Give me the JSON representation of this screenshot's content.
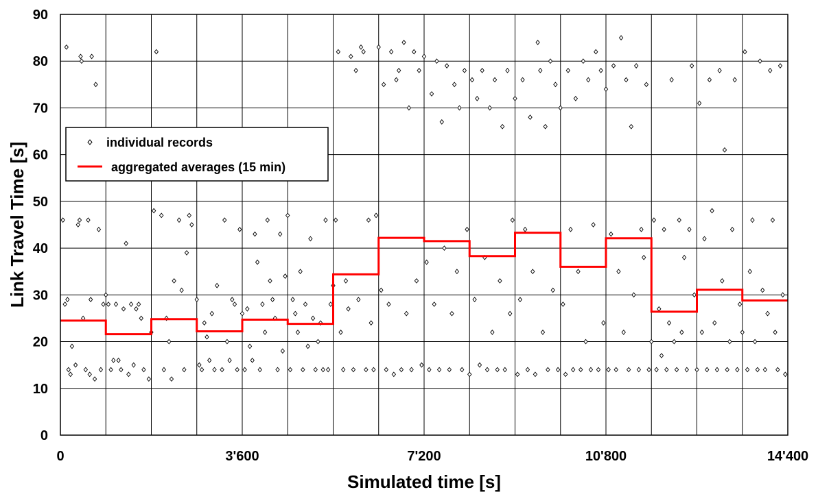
{
  "chart_data": {
    "type": "scatter",
    "xlabel": "Simulated time [s]",
    "ylabel": "Link Travel Time [s]",
    "xlim": [
      0,
      14400
    ],
    "ylim": [
      0,
      90
    ],
    "x_ticks": [
      0,
      3600,
      7200,
      10800,
      14400
    ],
    "x_tick_labels": [
      "0",
      "3'600",
      "7'200",
      "10'800",
      "14'400"
    ],
    "y_ticks": [
      0,
      10,
      20,
      30,
      40,
      50,
      60,
      70,
      80,
      90
    ],
    "y_tick_labels": [
      "0",
      "10",
      "20",
      "30",
      "40",
      "50",
      "60",
      "70",
      "80",
      "90"
    ],
    "x_gridlines": [
      0,
      900,
      1800,
      2700,
      3600,
      4500,
      5400,
      6300,
      7200,
      8100,
      9000,
      9900,
      10800,
      11700,
      12600,
      13500,
      14400
    ],
    "grid": true,
    "legend_position": "left",
    "series": [
      {
        "name": "individual records",
        "kind": "scatter",
        "marker": "open-diamond",
        "color": "#000000",
        "points": [
          [
            50,
            46
          ],
          [
            90,
            28
          ],
          [
            120,
            83
          ],
          [
            140,
            29
          ],
          [
            160,
            14
          ],
          [
            200,
            13
          ],
          [
            230,
            19
          ],
          [
            300,
            15
          ],
          [
            350,
            45
          ],
          [
            380,
            46
          ],
          [
            400,
            81
          ],
          [
            420,
            80
          ],
          [
            450,
            25
          ],
          [
            500,
            14
          ],
          [
            550,
            46
          ],
          [
            580,
            13
          ],
          [
            600,
            29
          ],
          [
            620,
            81
          ],
          [
            680,
            12
          ],
          [
            700,
            75
          ],
          [
            760,
            44
          ],
          [
            800,
            14
          ],
          [
            850,
            28
          ],
          [
            900,
            30
          ],
          [
            950,
            28
          ],
          [
            1000,
            14
          ],
          [
            1050,
            16
          ],
          [
            1100,
            28
          ],
          [
            1150,
            16
          ],
          [
            1200,
            14
          ],
          [
            1250,
            27
          ],
          [
            1300,
            41
          ],
          [
            1350,
            13
          ],
          [
            1400,
            28
          ],
          [
            1450,
            15
          ],
          [
            1500,
            27
          ],
          [
            1550,
            28
          ],
          [
            1600,
            25
          ],
          [
            1650,
            14
          ],
          [
            1750,
            12
          ],
          [
            1800,
            22
          ],
          [
            1850,
            48
          ],
          [
            1900,
            82
          ],
          [
            2000,
            47
          ],
          [
            2050,
            14
          ],
          [
            2100,
            25
          ],
          [
            2150,
            20
          ],
          [
            2200,
            12
          ],
          [
            2250,
            33
          ],
          [
            2350,
            46
          ],
          [
            2400,
            31
          ],
          [
            2450,
            14
          ],
          [
            2500,
            39
          ],
          [
            2550,
            47
          ],
          [
            2600,
            45
          ],
          [
            2700,
            29
          ],
          [
            2750,
            15
          ],
          [
            2800,
            14
          ],
          [
            2850,
            24
          ],
          [
            2900,
            21
          ],
          [
            2950,
            16
          ],
          [
            3000,
            26
          ],
          [
            3050,
            14
          ],
          [
            3100,
            32
          ],
          [
            3200,
            14
          ],
          [
            3250,
            46
          ],
          [
            3300,
            20
          ],
          [
            3350,
            16
          ],
          [
            3400,
            29
          ],
          [
            3450,
            28
          ],
          [
            3500,
            14
          ],
          [
            3550,
            44
          ],
          [
            3600,
            26
          ],
          [
            3650,
            14
          ],
          [
            3700,
            27
          ],
          [
            3750,
            19
          ],
          [
            3800,
            16
          ],
          [
            3850,
            43
          ],
          [
            3900,
            37
          ],
          [
            3950,
            14
          ],
          [
            4000,
            28
          ],
          [
            4050,
            22
          ],
          [
            4100,
            46
          ],
          [
            4150,
            33
          ],
          [
            4200,
            29
          ],
          [
            4250,
            25
          ],
          [
            4300,
            14
          ],
          [
            4350,
            43
          ],
          [
            4400,
            18
          ],
          [
            4450,
            34
          ],
          [
            4500,
            47
          ],
          [
            4550,
            14
          ],
          [
            4600,
            29
          ],
          [
            4650,
            26
          ],
          [
            4700,
            22
          ],
          [
            4750,
            35
          ],
          [
            4800,
            14
          ],
          [
            4850,
            28
          ],
          [
            4900,
            19
          ],
          [
            4950,
            42
          ],
          [
            5000,
            25
          ],
          [
            5050,
            14
          ],
          [
            5100,
            20
          ],
          [
            5150,
            24
          ],
          [
            5200,
            14
          ],
          [
            5250,
            46
          ],
          [
            5300,
            14
          ],
          [
            5350,
            28
          ],
          [
            5400,
            32
          ],
          [
            5450,
            46
          ],
          [
            5500,
            82
          ],
          [
            5550,
            22
          ],
          [
            5600,
            14
          ],
          [
            5650,
            33
          ],
          [
            5700,
            27
          ],
          [
            5750,
            81
          ],
          [
            5800,
            14
          ],
          [
            5850,
            78
          ],
          [
            5900,
            29
          ],
          [
            5950,
            83
          ],
          [
            6000,
            82
          ],
          [
            6050,
            14
          ],
          [
            6100,
            46
          ],
          [
            6150,
            24
          ],
          [
            6200,
            14
          ],
          [
            6250,
            47
          ],
          [
            6300,
            83
          ],
          [
            6350,
            31
          ],
          [
            6400,
            75
          ],
          [
            6450,
            14
          ],
          [
            6500,
            28
          ],
          [
            6550,
            82
          ],
          [
            6600,
            13
          ],
          [
            6650,
            76
          ],
          [
            6700,
            78
          ],
          [
            6750,
            14
          ],
          [
            6800,
            84
          ],
          [
            6850,
            26
          ],
          [
            6900,
            70
          ],
          [
            6950,
            14
          ],
          [
            7000,
            82
          ],
          [
            7050,
            33
          ],
          [
            7100,
            78
          ],
          [
            7150,
            15
          ],
          [
            7200,
            81
          ],
          [
            7250,
            37
          ],
          [
            7300,
            14
          ],
          [
            7350,
            73
          ],
          [
            7400,
            28
          ],
          [
            7450,
            80
          ],
          [
            7500,
            14
          ],
          [
            7550,
            67
          ],
          [
            7600,
            40
          ],
          [
            7650,
            79
          ],
          [
            7700,
            14
          ],
          [
            7750,
            26
          ],
          [
            7800,
            75
          ],
          [
            7850,
            35
          ],
          [
            7900,
            70
          ],
          [
            7950,
            14
          ],
          [
            8000,
            78
          ],
          [
            8050,
            44
          ],
          [
            8100,
            13
          ],
          [
            8150,
            76
          ],
          [
            8200,
            29
          ],
          [
            8250,
            72
          ],
          [
            8300,
            15
          ],
          [
            8350,
            78
          ],
          [
            8400,
            38
          ],
          [
            8450,
            14
          ],
          [
            8500,
            70
          ],
          [
            8550,
            22
          ],
          [
            8600,
            76
          ],
          [
            8650,
            14
          ],
          [
            8700,
            33
          ],
          [
            8750,
            66
          ],
          [
            8800,
            14
          ],
          [
            8850,
            78
          ],
          [
            8900,
            26
          ],
          [
            8950,
            46
          ],
          [
            9000,
            72
          ],
          [
            9050,
            13
          ],
          [
            9100,
            29
          ],
          [
            9150,
            76
          ],
          [
            9200,
            44
          ],
          [
            9250,
            14
          ],
          [
            9300,
            68
          ],
          [
            9350,
            35
          ],
          [
            9400,
            13
          ],
          [
            9450,
            84
          ],
          [
            9500,
            78
          ],
          [
            9550,
            22
          ],
          [
            9600,
            66
          ],
          [
            9650,
            14
          ],
          [
            9700,
            80
          ],
          [
            9750,
            31
          ],
          [
            9800,
            75
          ],
          [
            9850,
            14
          ],
          [
            9900,
            70
          ],
          [
            9950,
            28
          ],
          [
            10000,
            13
          ],
          [
            10050,
            78
          ],
          [
            10100,
            44
          ],
          [
            10150,
            14
          ],
          [
            10200,
            72
          ],
          [
            10250,
            35
          ],
          [
            10300,
            14
          ],
          [
            10350,
            80
          ],
          [
            10400,
            20
          ],
          [
            10450,
            76
          ],
          [
            10500,
            14
          ],
          [
            10550,
            45
          ],
          [
            10600,
            82
          ],
          [
            10650,
            14
          ],
          [
            10700,
            78
          ],
          [
            10750,
            24
          ],
          [
            10800,
            74
          ],
          [
            10850,
            14
          ],
          [
            10900,
            43
          ],
          [
            10950,
            79
          ],
          [
            11000,
            14
          ],
          [
            11050,
            35
          ],
          [
            11100,
            85
          ],
          [
            11150,
            22
          ],
          [
            11200,
            76
          ],
          [
            11250,
            14
          ],
          [
            11300,
            66
          ],
          [
            11350,
            30
          ],
          [
            11400,
            79
          ],
          [
            11450,
            14
          ],
          [
            11500,
            44
          ],
          [
            11550,
            38
          ],
          [
            11600,
            75
          ],
          [
            11650,
            14
          ],
          [
            11700,
            20
          ],
          [
            11750,
            46
          ],
          [
            11800,
            14
          ],
          [
            11850,
            27
          ],
          [
            11900,
            17
          ],
          [
            11950,
            44
          ],
          [
            12000,
            14
          ],
          [
            12050,
            24
          ],
          [
            12100,
            76
          ],
          [
            12150,
            20
          ],
          [
            12200,
            14
          ],
          [
            12250,
            46
          ],
          [
            12300,
            22
          ],
          [
            12350,
            38
          ],
          [
            12400,
            14
          ],
          [
            12450,
            44
          ],
          [
            12500,
            79
          ],
          [
            12550,
            30
          ],
          [
            12600,
            14
          ],
          [
            12650,
            71
          ],
          [
            12700,
            22
          ],
          [
            12750,
            42
          ],
          [
            12800,
            14
          ],
          [
            12850,
            76
          ],
          [
            12900,
            48
          ],
          [
            12950,
            24
          ],
          [
            13000,
            14
          ],
          [
            13050,
            78
          ],
          [
            13100,
            33
          ],
          [
            13150,
            61
          ],
          [
            13200,
            14
          ],
          [
            13250,
            20
          ],
          [
            13300,
            44
          ],
          [
            13350,
            76
          ],
          [
            13400,
            14
          ],
          [
            13450,
            28
          ],
          [
            13500,
            22
          ],
          [
            13550,
            82
          ],
          [
            13600,
            14
          ],
          [
            13650,
            35
          ],
          [
            13700,
            46
          ],
          [
            13750,
            20
          ],
          [
            13800,
            14
          ],
          [
            13850,
            80
          ],
          [
            13900,
            31
          ],
          [
            13950,
            14
          ],
          [
            14000,
            26
          ],
          [
            14050,
            78
          ],
          [
            14100,
            46
          ],
          [
            14150,
            22
          ],
          [
            14200,
            14
          ],
          [
            14250,
            79
          ],
          [
            14300,
            30
          ],
          [
            14350,
            13
          ]
        ]
      },
      {
        "name": "aggregated averages (15 min)",
        "kind": "step",
        "color": "#ff0000",
        "intervals": [
          {
            "x0": 0,
            "x1": 900,
            "y": 24.5
          },
          {
            "x0": 900,
            "x1": 1800,
            "y": 21.6
          },
          {
            "x0": 1800,
            "x1": 2700,
            "y": 24.8
          },
          {
            "x0": 2700,
            "x1": 3600,
            "y": 22.2
          },
          {
            "x0": 3600,
            "x1": 4500,
            "y": 24.7
          },
          {
            "x0": 4500,
            "x1": 5400,
            "y": 23.8
          },
          {
            "x0": 5400,
            "x1": 6300,
            "y": 34.4
          },
          {
            "x0": 6300,
            "x1": 7200,
            "y": 42.2
          },
          {
            "x0": 7200,
            "x1": 8100,
            "y": 41.5
          },
          {
            "x0": 8100,
            "x1": 9000,
            "y": 38.3
          },
          {
            "x0": 9000,
            "x1": 9900,
            "y": 43.3
          },
          {
            "x0": 9900,
            "x1": 10800,
            "y": 36.0
          },
          {
            "x0": 10800,
            "x1": 11700,
            "y": 42.1
          },
          {
            "x0": 11700,
            "x1": 12600,
            "y": 26.4
          },
          {
            "x0": 12600,
            "x1": 13500,
            "y": 31.1
          },
          {
            "x0": 13500,
            "x1": 14400,
            "y": 28.8
          }
        ]
      }
    ]
  }
}
